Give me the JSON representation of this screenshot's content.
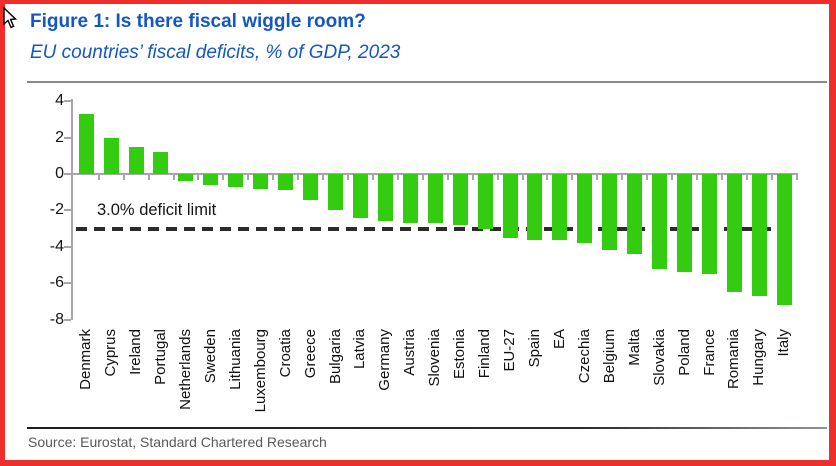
{
  "header": {
    "title": "Figure 1: Is there fiscal wiggle room?",
    "subtitle": "EU countries’ fiscal deficits, % of GDP, 2023"
  },
  "footer": {
    "source": "Source: Eurostat, Standard Chartered Research"
  },
  "colors": {
    "title_blue": "#1457C4",
    "bar_green": "#33CC11",
    "axis_gray": "#A6A6A6",
    "dash_black": "#2b2b2b",
    "frame_red": "#ED2E2A",
    "source_gray": "#595959"
  },
  "chart_data": {
    "type": "bar",
    "title": "Figure 1: Is there fiscal wiggle room?",
    "subtitle": "EU countries’ fiscal deficits, % of GDP, 2023",
    "xlabel": "",
    "ylabel": "% of GDP",
    "ylim": [
      -8,
      4
    ],
    "yticks": [
      4,
      2,
      0,
      -2,
      -4,
      -6,
      -8
    ],
    "grid": false,
    "legend": "none",
    "bar_color": "#33CC11",
    "reference_line": {
      "y": -3,
      "style": "dashed",
      "color": "#2b2b2b",
      "label": "3.0% deficit limit"
    },
    "categories": [
      "Denmark",
      "Cyprus",
      "Ireland",
      "Portugal",
      "Netherlands",
      "Sweden",
      "Lithuania",
      "Luxembourg",
      "Croatia",
      "Greece",
      "Bulgaria",
      "Latvia",
      "Germany",
      "Austria",
      "Slovenia",
      "Estonia",
      "Finland",
      "EU-27",
      "Spain",
      "EA",
      "Czechia",
      "Belgium",
      "Malta",
      "Slovakia",
      "Poland",
      "France",
      "Romania",
      "Hungary",
      "Italy"
    ],
    "values": [
      3.3,
      2.0,
      1.5,
      1.2,
      -0.4,
      -0.6,
      -0.7,
      -0.8,
      -0.9,
      -1.4,
      -2.0,
      -2.4,
      -2.6,
      -2.7,
      -2.7,
      -2.8,
      -3.0,
      -3.5,
      -3.6,
      -3.6,
      -3.8,
      -4.2,
      -4.4,
      -5.2,
      -5.4,
      -5.5,
      -6.5,
      -6.7,
      -7.2
    ]
  }
}
